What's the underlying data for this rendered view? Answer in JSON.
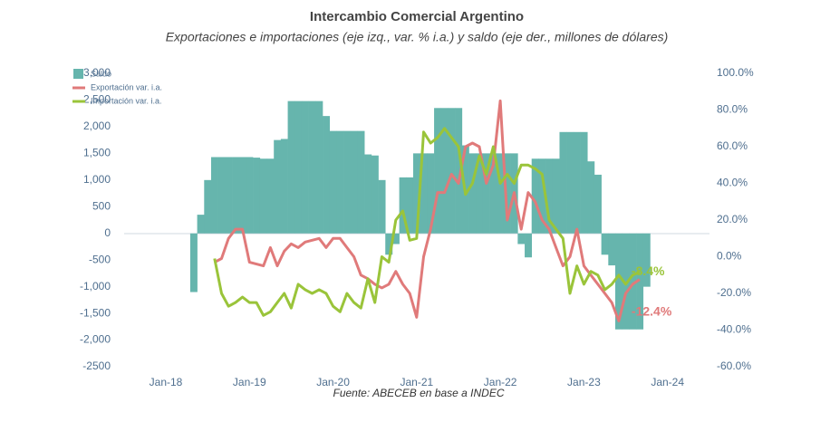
{
  "chart_data": {
    "type": "combo",
    "title": "Intercambio Comercial Argentino",
    "subtitle": "Exportaciones e importaciones (eje izq., var. % i.a.) y saldo (eje der., millones de dólares)",
    "source": "Fuente: ABECEB en base a INDEC",
    "categories": [
      "Jan-18",
      null,
      null,
      null,
      null,
      null,
      null,
      null,
      null,
      null,
      null,
      null,
      "Jan-19",
      null,
      null,
      null,
      null,
      null,
      null,
      null,
      null,
      null,
      null,
      null,
      "Jan-20",
      null,
      null,
      null,
      null,
      null,
      null,
      null,
      null,
      null,
      null,
      null,
      "Jan-21",
      null,
      null,
      null,
      null,
      null,
      null,
      null,
      null,
      null,
      null,
      null,
      "Jan-22",
      null,
      null,
      null,
      null,
      null,
      null,
      null,
      null,
      null,
      null,
      null,
      "Jan-23",
      null,
      null,
      null,
      null,
      null,
      null,
      null,
      null,
      null,
      null,
      null,
      "Jan-24"
    ],
    "ylim": [
      -2500,
      3000
    ],
    "yticks": [
      -2500,
      {
        "value": -2000,
        "label": "-2,000"
      },
      {
        "value": -1500,
        "label": "-1,500"
      },
      {
        "value": -1000,
        "label": "-1,000"
      },
      -500,
      0,
      500,
      {
        "value": 1000,
        "label": "1,000"
      },
      {
        "value": 1500,
        "label": "1,500"
      },
      {
        "value": 2000,
        "label": "2,000"
      },
      {
        "value": 2500,
        "label": "2,500"
      },
      {
        "value": 3000,
        "label": "3,000"
      }
    ],
    "y2lim": [
      -60,
      100
    ],
    "y2ticks": [
      {
        "value": -60,
        "label": "-60.0%"
      },
      {
        "value": -40,
        "label": "-40.0%"
      },
      {
        "value": -20,
        "label": "-20.0%"
      },
      {
        "value": 0,
        "label": "0.0%"
      },
      {
        "value": 20,
        "label": "20.0%"
      },
      {
        "value": 40,
        "label": "40.0%"
      },
      {
        "value": 60,
        "label": "60.0%"
      },
      {
        "value": 80,
        "label": "80.0%"
      },
      {
        "value": 100,
        "label": "100.0%"
      }
    ],
    "legend": "top-left",
    "series": [
      {
        "name": "Saldo",
        "type": "bar",
        "color": "#66b5ad",
        "values": [
          null,
          null,
          null,
          null,
          -1100,
          350,
          1000,
          1430,
          1430,
          1430,
          1430,
          1430,
          1430,
          1420,
          1400,
          1400,
          1750,
          1770,
          2480,
          2480,
          2480,
          2480,
          2480,
          2200,
          1920,
          1920,
          1920,
          1920,
          1920,
          1480,
          1460,
          1000,
          -400,
          -200,
          1050,
          1050,
          1500,
          1500,
          1500,
          2350,
          2350,
          2350,
          2350,
          1650,
          1500,
          1500,
          1500,
          1500,
          1500,
          1500,
          1500,
          -200,
          -450,
          1400,
          1400,
          1400,
          1400,
          1900,
          1900,
          1900,
          1900,
          1350,
          1100,
          -400,
          -600,
          -1800,
          -1800,
          -1800,
          -1800,
          -1000,
          null,
          null,
          null
        ]
      },
      {
        "name": "Exportación var. i.a.",
        "type": "line",
        "axis": "y2",
        "color": "#e07a7a",
        "values": [
          null,
          null,
          null,
          null,
          null,
          null,
          null,
          -3,
          -1,
          10,
          15,
          15,
          -3,
          -4,
          -5,
          5,
          -5,
          3,
          7,
          5,
          8,
          9,
          10,
          5,
          10,
          10,
          5,
          0,
          -10,
          -12,
          -15,
          -17,
          -15,
          -8,
          -15,
          -20,
          -33,
          0,
          15,
          35,
          35,
          45,
          40,
          60,
          62,
          60,
          40,
          50,
          85,
          20,
          35,
          15,
          35,
          30,
          20,
          15,
          5,
          -5,
          0,
          15,
          -5,
          -10,
          -15,
          -20,
          -25,
          -35,
          -20,
          -15,
          -12.4,
          null,
          null,
          null,
          null
        ],
        "value_labels": [
          null,
          null,
          null,
          null,
          null,
          null,
          null,
          null,
          null,
          null,
          null,
          null,
          null,
          null,
          null,
          null,
          null,
          null,
          null,
          null,
          null,
          null,
          null,
          null,
          null,
          null,
          null,
          null,
          null,
          null,
          null,
          null,
          null,
          null,
          null,
          null,
          null,
          null,
          null,
          null,
          null,
          null,
          null,
          null,
          null,
          null,
          null,
          null,
          null,
          null,
          null,
          null,
          null,
          null,
          null,
          null,
          null,
          null,
          null,
          null,
          null,
          null,
          null,
          null,
          null,
          null,
          null,
          null,
          "-12.4%",
          null,
          null,
          null,
          null
        ]
      },
      {
        "name": "Importación var. i.a.",
        "type": "line",
        "axis": "y2",
        "color": "#9ac43a",
        "values": [
          null,
          null,
          null,
          null,
          null,
          null,
          null,
          -1,
          -20,
          -27,
          -25,
          -22,
          -25,
          -25,
          -32,
          -30,
          -25,
          -20,
          -28,
          -15,
          -18,
          -20,
          -18,
          -20,
          -27,
          -30,
          -20,
          -25,
          -28,
          -12,
          -25,
          0,
          -3,
          20,
          25,
          9,
          10,
          68,
          62,
          65,
          70,
          65,
          60,
          34,
          40,
          55,
          45,
          60,
          40,
          45,
          40,
          50,
          50,
          48,
          45,
          20,
          15,
          10,
          -20,
          -5,
          -15,
          -8,
          -10,
          -18,
          -15,
          -10,
          -15,
          -10,
          -8.4,
          null,
          null,
          null,
          null
        ],
        "value_labels": [
          null,
          null,
          null,
          null,
          null,
          null,
          null,
          null,
          null,
          null,
          null,
          null,
          null,
          null,
          null,
          null,
          null,
          null,
          null,
          null,
          null,
          null,
          null,
          null,
          null,
          null,
          null,
          null,
          null,
          null,
          null,
          null,
          null,
          null,
          null,
          null,
          null,
          null,
          null,
          null,
          null,
          null,
          null,
          null,
          null,
          null,
          null,
          null,
          null,
          null,
          null,
          null,
          null,
          null,
          null,
          null,
          null,
          null,
          null,
          null,
          null,
          null,
          null,
          null,
          null,
          null,
          null,
          null,
          "-8.4%",
          null,
          null,
          null,
          null
        ]
      }
    ]
  }
}
